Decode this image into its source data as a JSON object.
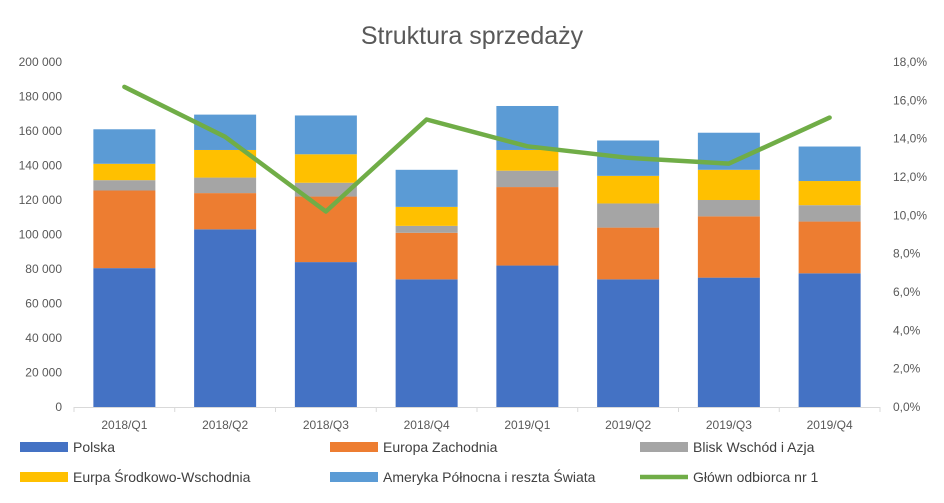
{
  "chart_data": {
    "type": "bar",
    "stacked": true,
    "title": "Struktura sprzedaży",
    "categories": [
      "2018/Q1",
      "2018/Q2",
      "2018/Q3",
      "2018/Q4",
      "2019/Q1",
      "2019/Q2",
      "2019/Q3",
      "2019/Q4"
    ],
    "y_ticks": [
      "0",
      "20 000",
      "40 000",
      "60 000",
      "80 000",
      "100 000",
      "120 000",
      "140 000",
      "160 000",
      "180 000",
      "200 000"
    ],
    "y2_ticks": [
      "0,0%",
      "2,0%",
      "4,0%",
      "6,0%",
      "8,0%",
      "10,0%",
      "12,0%",
      "14,0%",
      "16,0%",
      "18,0%"
    ],
    "ylim": [
      0,
      200000
    ],
    "y2lim": [
      0,
      0.18
    ],
    "grid": false,
    "legend_position": "bottom",
    "series": [
      {
        "name": "Polska",
        "color": "#4472C4",
        "values": [
          80500,
          103000,
          84000,
          74000,
          82000,
          74000,
          75000,
          77500
        ]
      },
      {
        "name": "Europa Zachodnia",
        "color": "#ED7D31",
        "values": [
          45000,
          21000,
          38000,
          27000,
          45500,
          30000,
          35500,
          30000
        ]
      },
      {
        "name": "Blisk Wschód i Azja",
        "color": "#A5A5A5",
        "values": [
          6000,
          9000,
          8000,
          4000,
          9500,
          14000,
          9500,
          9500
        ]
      },
      {
        "name": "Eurpa Środkowo-Wschodnia",
        "color": "#FFC000",
        "values": [
          9500,
          16000,
          16500,
          11000,
          12000,
          16000,
          17500,
          14000
        ]
      },
      {
        "name": "Ameryka Północna i reszta Świata",
        "color": "#5B9BD5",
        "values": [
          20000,
          20500,
          22500,
          21500,
          25500,
          20500,
          21500,
          20000
        ]
      }
    ],
    "line_series": {
      "name": "Główn odbiorca nr 1",
      "color": "#70AD47",
      "axis": "secondary",
      "values": [
        0.167,
        0.141,
        0.102,
        0.15,
        0.136,
        0.13,
        0.127,
        0.151
      ]
    }
  }
}
